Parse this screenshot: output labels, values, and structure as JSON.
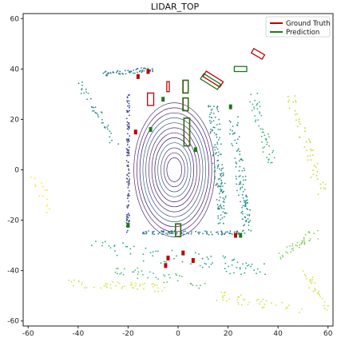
{
  "chart_data": {
    "type": "scatter",
    "title": "LIDAR_TOP",
    "xlabel": "",
    "ylabel": "",
    "xlim": [
      -62,
      62
    ],
    "ylim": [
      -62,
      62
    ],
    "xticks": [
      -60,
      -40,
      -20,
      0,
      20,
      40,
      60
    ],
    "yticks": [
      60,
      40,
      20,
      0,
      -20,
      -40,
      -60
    ],
    "grid": false,
    "legend": {
      "placement": "top-right",
      "entries": [
        {
          "label": "Ground Truth",
          "color": "#c00000"
        },
        {
          "label": "Prediction",
          "color": "#1a7a1a"
        }
      ]
    },
    "colors": {
      "ground_truth": "#c00000",
      "prediction": "#1a7a1a",
      "near_points": "#3b1f7a",
      "mid_points": "#2a8f8a",
      "far_points": "#d6e23a"
    },
    "ground_truth_boxes": [
      {
        "cx": 3,
        "cy": 33,
        "w": 2,
        "h": 5
      },
      {
        "cx": 3,
        "cy": 26,
        "w": 2,
        "h": 5
      },
      {
        "cx": 3.5,
        "cy": 15,
        "w": 2.2,
        "h": 11
      },
      {
        "cx": 0,
        "cy": -24,
        "w": 2,
        "h": 5
      },
      {
        "cx": 14,
        "cy": 36,
        "w": 2.5,
        "h": 8,
        "angle": 58
      },
      {
        "cx": 32,
        "cy": 46,
        "w": 2,
        "h": 5,
        "angle": 60
      },
      {
        "cx": -11,
        "cy": 28,
        "w": 2.5,
        "h": 5
      },
      {
        "cx": -4,
        "cy": 33,
        "w": 1,
        "h": 4
      }
    ],
    "prediction_boxes": [
      {
        "cx": 3,
        "cy": 33,
        "w": 2.2,
        "h": 5.2
      },
      {
        "cx": 3,
        "cy": 26,
        "w": 2.2,
        "h": 5.2
      },
      {
        "cx": 3.5,
        "cy": 15,
        "w": 2.4,
        "h": 11.2
      },
      {
        "cx": 0,
        "cy": -24,
        "w": 2.2,
        "h": 5.2
      },
      {
        "cx": 13,
        "cy": 35,
        "w": 2.5,
        "h": 8,
        "angle": 58
      },
      {
        "cx": 25,
        "cy": 40,
        "w": 5,
        "h": 2
      }
    ],
    "objects": [
      {
        "x": -16,
        "y": 37,
        "label": "gt"
      },
      {
        "x": -12,
        "y": 39,
        "label": "gt"
      },
      {
        "x": -6,
        "y": 28,
        "label": "pred"
      },
      {
        "x": -11,
        "y": 16,
        "label": "pred"
      },
      {
        "x": -17,
        "y": 15,
        "label": "gt"
      },
      {
        "x": 7,
        "y": 8,
        "label": "pred"
      },
      {
        "x": 2,
        "y": -33,
        "label": "gt"
      },
      {
        "x": 6,
        "y": -36,
        "label": "gt"
      },
      {
        "x": -4,
        "y": -35,
        "label": "gt"
      },
      {
        "x": -5,
        "y": -38,
        "label": "gt"
      },
      {
        "x": 23,
        "y": -26,
        "label": "gt"
      },
      {
        "x": 25,
        "y": -26,
        "label": "pred"
      },
      {
        "x": -20,
        "y": -22,
        "label": "pred"
      },
      {
        "x": 21,
        "y": 25,
        "label": "pred"
      }
    ]
  }
}
